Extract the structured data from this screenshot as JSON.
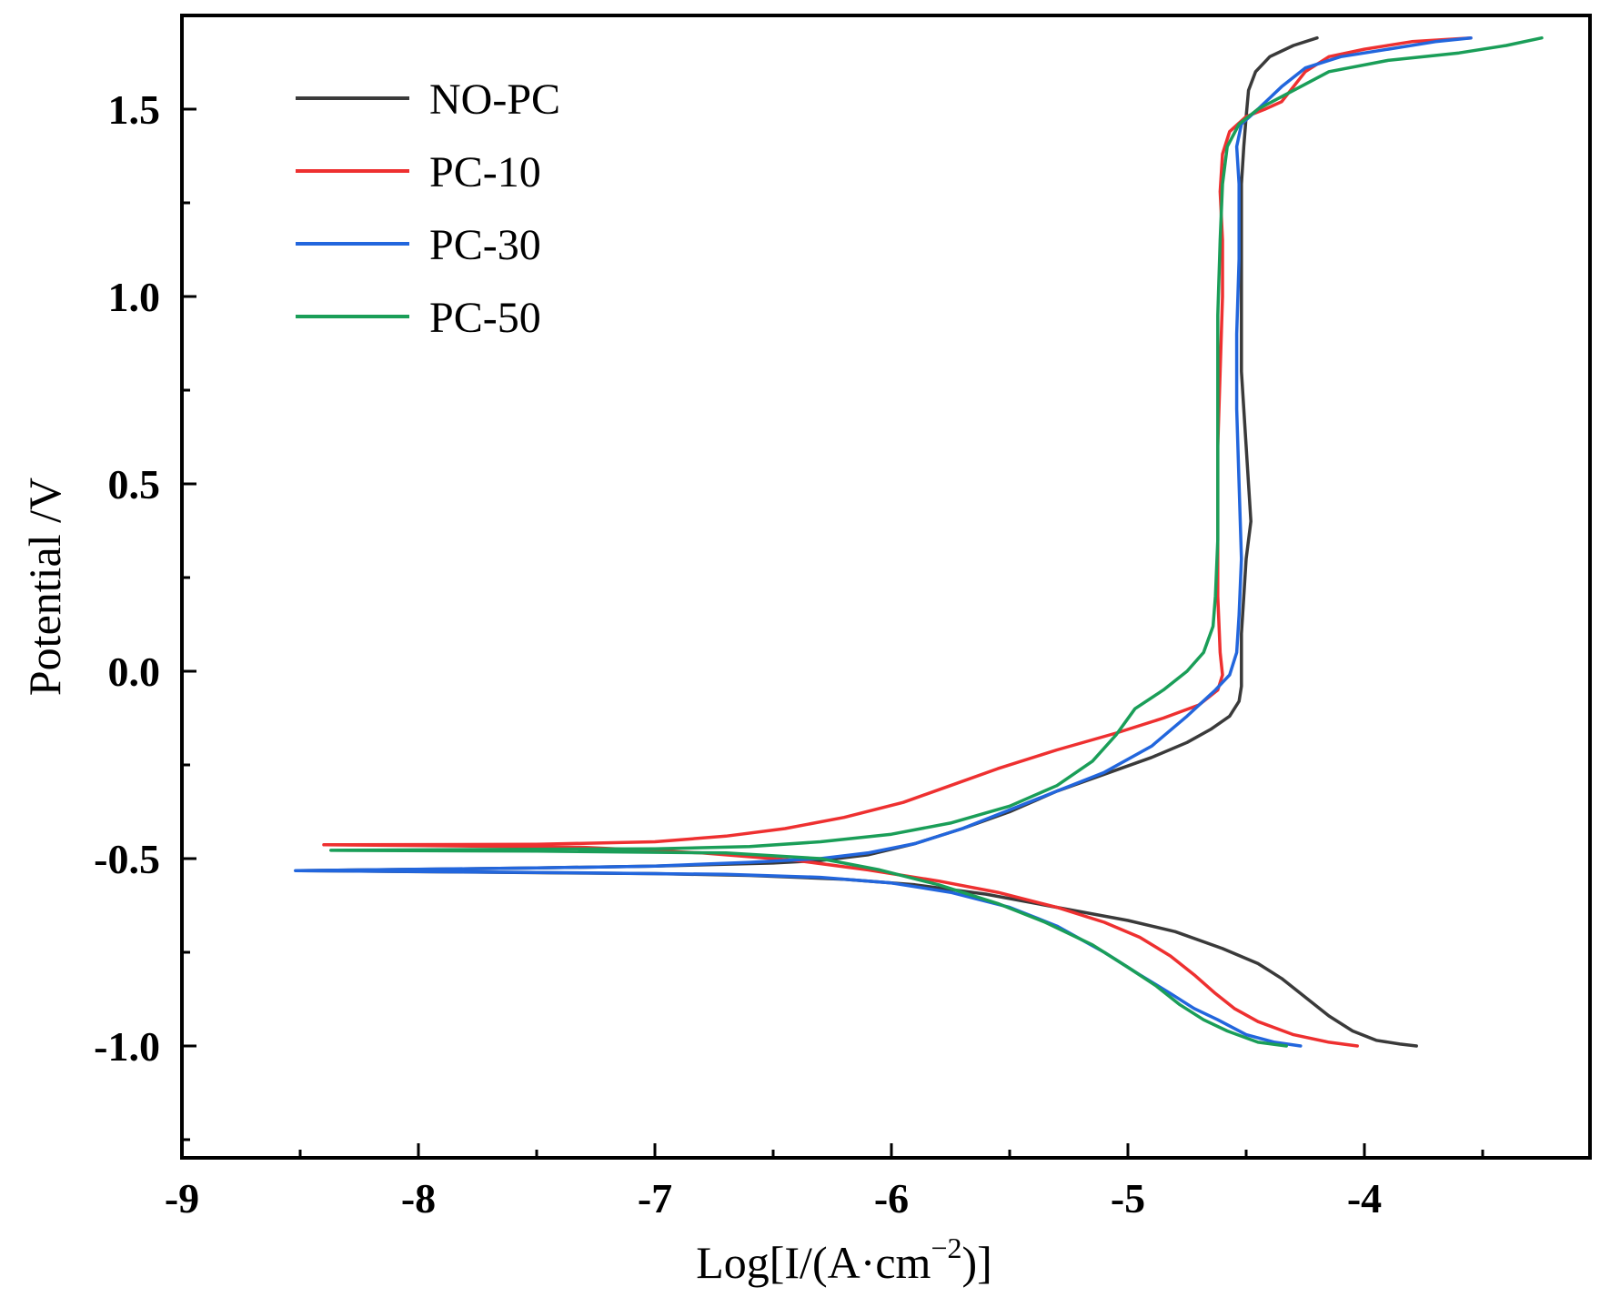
{
  "chart_data": {
    "type": "line",
    "title": "",
    "xlabel": "Log[I/(A·cm",
    "xlabel_sup": "−2",
    "xlabel_tail": ")]",
    "ylabel": "Potential /V",
    "xlim": [
      -9,
      -3.2
    ],
    "ylim": [
      -1.25,
      1.75
    ],
    "xticks": [
      -9,
      -8,
      -7,
      -6,
      -5,
      -4
    ],
    "xtick_labels": [
      "-9",
      "-8",
      "-7",
      "-6",
      "-5",
      "-4"
    ],
    "yticks": [
      -1.0,
      -0.5,
      0.0,
      0.5,
      1.0,
      1.5
    ],
    "ytick_labels": [
      "-1.0",
      "-0.5",
      "0.0",
      "0.5",
      "1.0",
      "1.5"
    ],
    "grid": false,
    "legend_position": "top-left",
    "series": [
      {
        "name": "NO-PC",
        "color": "#3a3a3a",
        "points": [
          [
            -3.78,
            -1.0
          ],
          [
            -3.85,
            -0.995
          ],
          [
            -3.95,
            -0.985
          ],
          [
            -4.05,
            -0.96
          ],
          [
            -4.15,
            -0.92
          ],
          [
            -4.25,
            -0.87
          ],
          [
            -4.35,
            -0.82
          ],
          [
            -4.45,
            -0.78
          ],
          [
            -4.6,
            -0.74
          ],
          [
            -4.8,
            -0.695
          ],
          [
            -5.0,
            -0.665
          ],
          [
            -5.3,
            -0.63
          ],
          [
            -5.6,
            -0.595
          ],
          [
            -5.9,
            -0.57
          ],
          [
            -6.2,
            -0.555
          ],
          [
            -6.6,
            -0.545
          ],
          [
            -7.0,
            -0.54
          ],
          [
            -8.0,
            -0.535
          ],
          [
            -8.5,
            -0.532
          ],
          [
            -7.5,
            -0.525
          ],
          [
            -7.0,
            -0.52
          ],
          [
            -6.5,
            -0.512
          ],
          [
            -6.3,
            -0.505
          ],
          [
            -6.1,
            -0.49
          ],
          [
            -5.9,
            -0.46
          ],
          [
            -5.7,
            -0.42
          ],
          [
            -5.5,
            -0.375
          ],
          [
            -5.3,
            -0.32
          ],
          [
            -5.1,
            -0.275
          ],
          [
            -4.9,
            -0.23
          ],
          [
            -4.75,
            -0.19
          ],
          [
            -4.65,
            -0.155
          ],
          [
            -4.57,
            -0.12
          ],
          [
            -4.53,
            -0.08
          ],
          [
            -4.52,
            -0.04
          ],
          [
            -4.52,
            0.0
          ],
          [
            -4.52,
            0.1
          ],
          [
            -4.51,
            0.2
          ],
          [
            -4.5,
            0.3
          ],
          [
            -4.48,
            0.4
          ],
          [
            -4.49,
            0.5
          ],
          [
            -4.5,
            0.6
          ],
          [
            -4.51,
            0.7
          ],
          [
            -4.52,
            0.8
          ],
          [
            -4.52,
            0.9
          ],
          [
            -4.52,
            1.0
          ],
          [
            -4.52,
            1.1
          ],
          [
            -4.52,
            1.2
          ],
          [
            -4.52,
            1.3
          ],
          [
            -4.51,
            1.4
          ],
          [
            -4.5,
            1.48
          ],
          [
            -4.49,
            1.55
          ],
          [
            -4.46,
            1.6
          ],
          [
            -4.4,
            1.64
          ],
          [
            -4.3,
            1.67
          ],
          [
            -4.2,
            1.69
          ]
        ]
      },
      {
        "name": "PC-10",
        "color": "#ee3030",
        "points": [
          [
            -4.03,
            -1.0
          ],
          [
            -4.15,
            -0.99
          ],
          [
            -4.3,
            -0.97
          ],
          [
            -4.45,
            -0.935
          ],
          [
            -4.55,
            -0.9
          ],
          [
            -4.63,
            -0.86
          ],
          [
            -4.72,
            -0.81
          ],
          [
            -4.82,
            -0.76
          ],
          [
            -4.95,
            -0.71
          ],
          [
            -5.1,
            -0.67
          ],
          [
            -5.3,
            -0.63
          ],
          [
            -5.55,
            -0.59
          ],
          [
            -5.8,
            -0.56
          ],
          [
            -6.1,
            -0.53
          ],
          [
            -6.4,
            -0.505
          ],
          [
            -6.8,
            -0.485
          ],
          [
            -7.3,
            -0.47
          ],
          [
            -8.0,
            -0.465
          ],
          [
            -8.4,
            -0.463
          ],
          [
            -7.5,
            -0.462
          ],
          [
            -7.0,
            -0.455
          ],
          [
            -6.7,
            -0.44
          ],
          [
            -6.45,
            -0.42
          ],
          [
            -6.2,
            -0.39
          ],
          [
            -5.95,
            -0.35
          ],
          [
            -5.75,
            -0.305
          ],
          [
            -5.55,
            -0.26
          ],
          [
            -5.3,
            -0.21
          ],
          [
            -5.05,
            -0.165
          ],
          [
            -4.85,
            -0.125
          ],
          [
            -4.7,
            -0.09
          ],
          [
            -4.62,
            -0.05
          ],
          [
            -4.6,
            -0.01
          ],
          [
            -4.61,
            0.05
          ],
          [
            -4.62,
            0.2
          ],
          [
            -4.62,
            0.4
          ],
          [
            -4.62,
            0.6
          ],
          [
            -4.61,
            0.8
          ],
          [
            -4.6,
            1.0
          ],
          [
            -4.6,
            1.15
          ],
          [
            -4.61,
            1.28
          ],
          [
            -4.6,
            1.38
          ],
          [
            -4.57,
            1.44
          ],
          [
            -4.5,
            1.48
          ],
          [
            -4.42,
            1.5
          ],
          [
            -4.35,
            1.52
          ],
          [
            -4.3,
            1.56
          ],
          [
            -4.25,
            1.6
          ],
          [
            -4.15,
            1.64
          ],
          [
            -4.0,
            1.66
          ],
          [
            -3.8,
            1.68
          ],
          [
            -3.55,
            1.69
          ]
        ]
      },
      {
        "name": "PC-30",
        "color": "#2266dd",
        "points": [
          [
            -4.27,
            -1.0
          ],
          [
            -4.38,
            -0.99
          ],
          [
            -4.5,
            -0.97
          ],
          [
            -4.62,
            -0.93
          ],
          [
            -4.72,
            -0.9
          ],
          [
            -4.82,
            -0.86
          ],
          [
            -4.95,
            -0.81
          ],
          [
            -5.1,
            -0.75
          ],
          [
            -5.3,
            -0.68
          ],
          [
            -5.5,
            -0.63
          ],
          [
            -5.75,
            -0.59
          ],
          [
            -6.0,
            -0.565
          ],
          [
            -6.3,
            -0.55
          ],
          [
            -6.7,
            -0.542
          ],
          [
            -7.5,
            -0.537
          ],
          [
            -8.52,
            -0.532
          ],
          [
            -7.5,
            -0.525
          ],
          [
            -7.0,
            -0.52
          ],
          [
            -6.6,
            -0.51
          ],
          [
            -6.3,
            -0.5
          ],
          [
            -6.1,
            -0.485
          ],
          [
            -5.9,
            -0.46
          ],
          [
            -5.7,
            -0.42
          ],
          [
            -5.5,
            -0.37
          ],
          [
            -5.3,
            -0.32
          ],
          [
            -5.1,
            -0.27
          ],
          [
            -4.9,
            -0.2
          ],
          [
            -4.75,
            -0.12
          ],
          [
            -4.63,
            -0.05
          ],
          [
            -4.57,
            -0.01
          ],
          [
            -4.54,
            0.05
          ],
          [
            -4.53,
            0.15
          ],
          [
            -4.52,
            0.3
          ],
          [
            -4.53,
            0.5
          ],
          [
            -4.54,
            0.7
          ],
          [
            -4.54,
            0.9
          ],
          [
            -4.53,
            1.1
          ],
          [
            -4.53,
            1.3
          ],
          [
            -4.54,
            1.4
          ],
          [
            -4.52,
            1.46
          ],
          [
            -4.45,
            1.5
          ],
          [
            -4.35,
            1.56
          ],
          [
            -4.25,
            1.61
          ],
          [
            -4.1,
            1.64
          ],
          [
            -3.9,
            1.66
          ],
          [
            -3.7,
            1.68
          ],
          [
            -3.55,
            1.69
          ]
        ]
      },
      {
        "name": "PC-50",
        "color": "#1a9e58",
        "points": [
          [
            -4.33,
            -1.0
          ],
          [
            -4.45,
            -0.99
          ],
          [
            -4.58,
            -0.96
          ],
          [
            -4.68,
            -0.93
          ],
          [
            -4.78,
            -0.89
          ],
          [
            -4.88,
            -0.84
          ],
          [
            -5.0,
            -0.79
          ],
          [
            -5.15,
            -0.73
          ],
          [
            -5.35,
            -0.67
          ],
          [
            -5.55,
            -0.62
          ],
          [
            -5.8,
            -0.57
          ],
          [
            -6.05,
            -0.53
          ],
          [
            -6.3,
            -0.5
          ],
          [
            -6.7,
            -0.485
          ],
          [
            -7.5,
            -0.48
          ],
          [
            -8.37,
            -0.478
          ],
          [
            -7.5,
            -0.475
          ],
          [
            -7.0,
            -0.474
          ],
          [
            -6.6,
            -0.468
          ],
          [
            -6.3,
            -0.455
          ],
          [
            -6.0,
            -0.435
          ],
          [
            -5.75,
            -0.405
          ],
          [
            -5.5,
            -0.36
          ],
          [
            -5.3,
            -0.305
          ],
          [
            -5.15,
            -0.24
          ],
          [
            -5.05,
            -0.17
          ],
          [
            -4.97,
            -0.1
          ],
          [
            -4.85,
            -0.05
          ],
          [
            -4.75,
            0.0
          ],
          [
            -4.68,
            0.05
          ],
          [
            -4.64,
            0.12
          ],
          [
            -4.63,
            0.2
          ],
          [
            -4.62,
            0.35
          ],
          [
            -4.62,
            0.55
          ],
          [
            -4.62,
            0.75
          ],
          [
            -4.62,
            0.95
          ],
          [
            -4.61,
            1.15
          ],
          [
            -4.6,
            1.3
          ],
          [
            -4.58,
            1.4
          ],
          [
            -4.53,
            1.46
          ],
          [
            -4.45,
            1.5
          ],
          [
            -4.3,
            1.55
          ],
          [
            -4.15,
            1.6
          ],
          [
            -3.9,
            1.63
          ],
          [
            -3.6,
            1.65
          ],
          [
            -3.4,
            1.67
          ],
          [
            -3.25,
            1.69
          ]
        ]
      }
    ]
  }
}
